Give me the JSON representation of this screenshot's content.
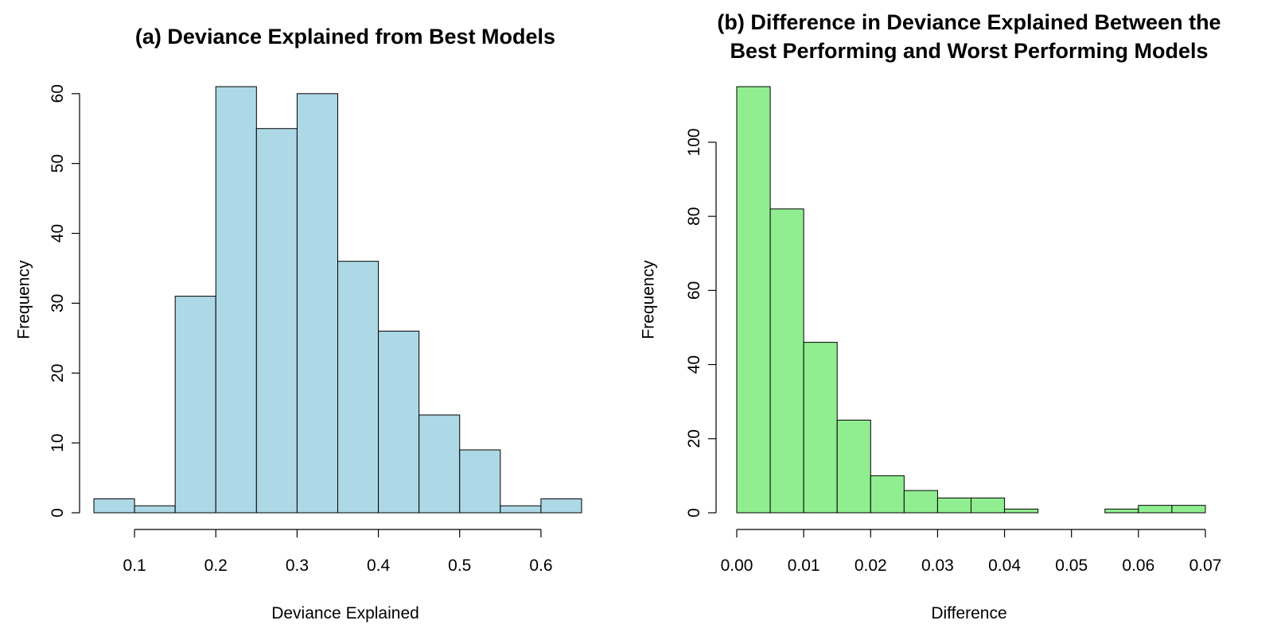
{
  "chart_data": [
    {
      "type": "bar",
      "title_lines": [
        "(a) Deviance Explained from Best Models"
      ],
      "xlabel": "Deviance Explained",
      "ylabel": "Frequency",
      "bin_edges": [
        0.05,
        0.1,
        0.15,
        0.2,
        0.25,
        0.3,
        0.35,
        0.4,
        0.45,
        0.5,
        0.55,
        0.6,
        0.65
      ],
      "values": [
        2,
        1,
        31,
        61,
        55,
        60,
        36,
        26,
        14,
        9,
        1,
        2
      ],
      "xticks": [
        0.1,
        0.2,
        0.3,
        0.4,
        0.5,
        0.6
      ],
      "xtick_labels": [
        "0.1",
        "0.2",
        "0.3",
        "0.4",
        "0.5",
        "0.6"
      ],
      "yticks": [
        0,
        10,
        20,
        30,
        40,
        50,
        60
      ],
      "ytick_labels": [
        "0",
        "10",
        "20",
        "30",
        "40",
        "50",
        "60"
      ],
      "xlim": [
        0.05,
        0.65
      ],
      "ylim": [
        0,
        61
      ],
      "bar_color": "#add8e6",
      "grid": false
    },
    {
      "type": "bar",
      "title_lines": [
        "(b) Difference in Deviance Explained Between the",
        "Best Performing and Worst Performing Models"
      ],
      "xlabel": "Difference",
      "ylabel": "Frequency",
      "bin_edges": [
        0.0,
        0.005,
        0.01,
        0.015,
        0.02,
        0.025,
        0.03,
        0.035,
        0.04,
        0.045,
        0.05,
        0.055,
        0.06,
        0.065,
        0.07
      ],
      "values": [
        115,
        82,
        46,
        25,
        10,
        6,
        4,
        4,
        1,
        0,
        0,
        1,
        2,
        2
      ],
      "xticks": [
        0.0,
        0.01,
        0.02,
        0.03,
        0.04,
        0.05,
        0.06,
        0.07
      ],
      "xtick_labels": [
        "0.00",
        "0.01",
        "0.02",
        "0.03",
        "0.04",
        "0.05",
        "0.06",
        "0.07"
      ],
      "yticks": [
        0,
        20,
        40,
        60,
        80,
        100
      ],
      "ytick_labels": [
        "0",
        "20",
        "40",
        "60",
        "80",
        "100"
      ],
      "xlim": [
        0.0,
        0.07
      ],
      "ylim": [
        0,
        115
      ],
      "bar_color": "#90ee90",
      "grid": false
    }
  ]
}
